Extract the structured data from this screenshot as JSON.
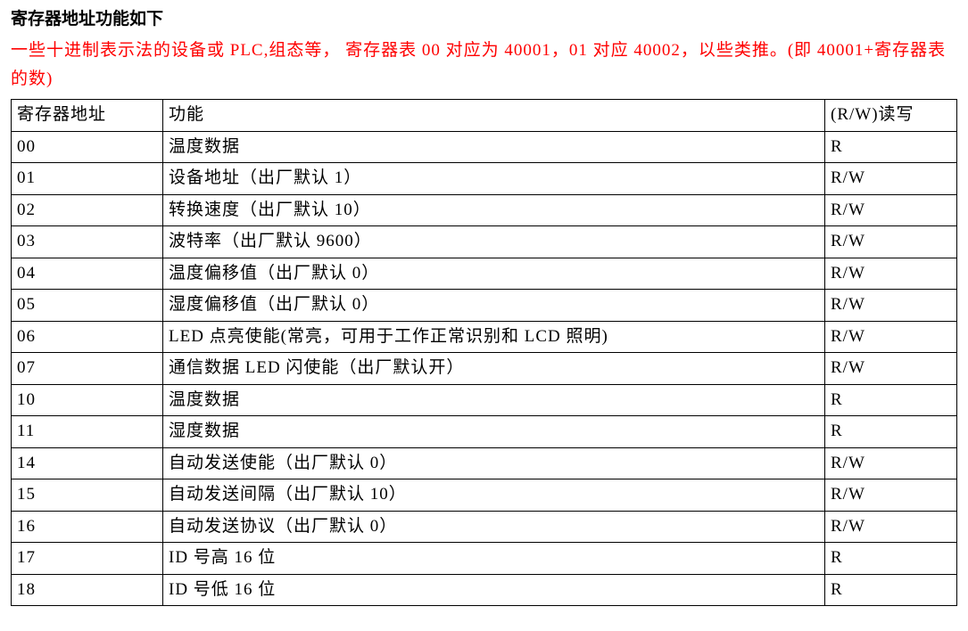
{
  "title": "寄存器地址功能如下",
  "note": "一些十进制表示法的设备或 PLC,组态等， 寄存器表 00 对应为 40001，01 对应 40002，以些类推。(即 40001+寄存器表的数)",
  "columns": {
    "addr": "寄存器地址",
    "func": "功能",
    "rw": "(R/W)读写"
  },
  "rows": [
    {
      "addr": "00",
      "func": "温度数据",
      "rw": "R"
    },
    {
      "addr": "01",
      "func": "设备地址（出厂默认 1）",
      "rw": "R/W"
    },
    {
      "addr": "02",
      "func": "转换速度（出厂默认 10）",
      "rw": "R/W"
    },
    {
      "addr": "03",
      "func": "波特率（出厂默认 9600）",
      "rw": "R/W"
    },
    {
      "addr": "04",
      "func": "温度偏移值（出厂默认 0）",
      "rw": "R/W"
    },
    {
      "addr": "05",
      "func": "湿度偏移值（出厂默认 0）",
      "rw": "R/W"
    },
    {
      "addr": "06",
      "func": "LED 点亮使能(常亮，可用于工作正常识别和 LCD 照明)",
      "rw": "R/W"
    },
    {
      "addr": "07",
      "func": "通信数据 LED 闪使能（出厂默认开）",
      "rw": "R/W"
    },
    {
      "addr": "10",
      "func": "温度数据",
      "rw": "R"
    },
    {
      "addr": "11",
      "func": "湿度数据",
      "rw": "R"
    },
    {
      "addr": "14",
      "func": "自动发送使能（出厂默认 0）",
      "rw": "R/W"
    },
    {
      "addr": "15",
      "func": "自动发送间隔（出厂默认 10）",
      "rw": "R/W"
    },
    {
      "addr": "16",
      "func": "自动发送协议（出厂默认 0）",
      "rw": "R/W"
    },
    {
      "addr": "17",
      "func": "ID 号高 16 位",
      "rw": "R"
    },
    {
      "addr": "18",
      "func": "ID 号低 16 位",
      "rw": "R"
    }
  ],
  "style": {
    "title_color": "#000000",
    "note_color": "#ff0000",
    "border_color": "#000000",
    "background_color": "#ffffff",
    "font_size": 19,
    "col_widths": {
      "addr": 170,
      "func": "auto",
      "rw": 148
    }
  }
}
